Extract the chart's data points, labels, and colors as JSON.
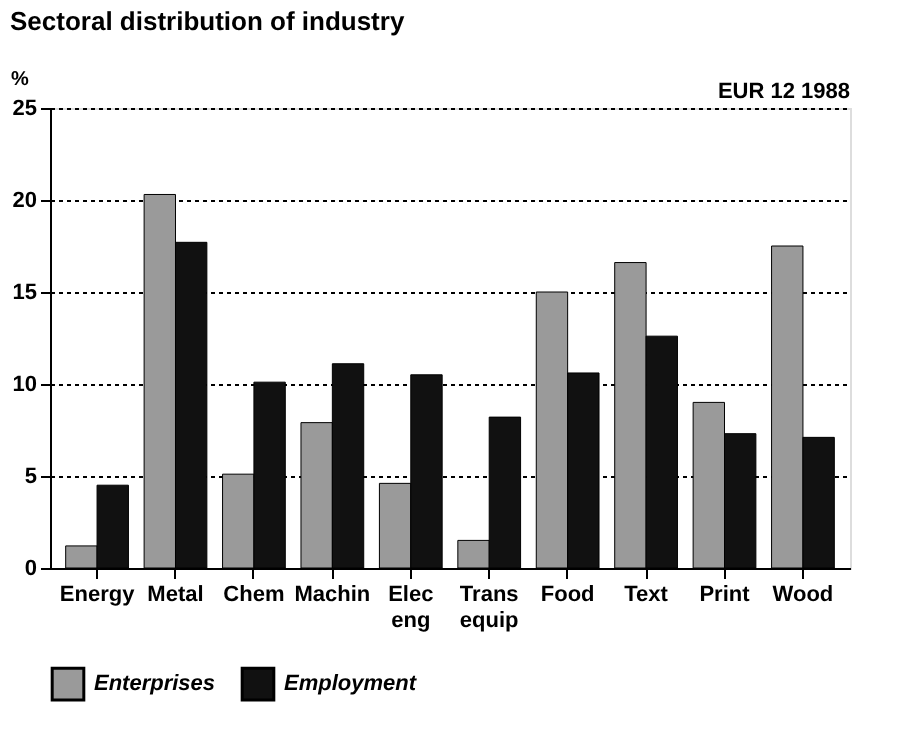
{
  "chart_data": {
    "type": "bar",
    "title": "Sectoral distribution of industry",
    "ylabel": "%",
    "annotations": [
      "EUR 12  1988"
    ],
    "categories": [
      "Energy",
      "Metal",
      "Chem",
      "Machin",
      "Elec eng",
      "Trans equip",
      "Food",
      "Text",
      "Print",
      "Wood"
    ],
    "series": [
      {
        "name": "Enterprises",
        "color": "#9a9a9a",
        "values": [
          1.2,
          20.3,
          5.1,
          7.9,
          4.6,
          1.5,
          15.0,
          16.6,
          9.0,
          17.5
        ]
      },
      {
        "name": "Employment",
        "color": "#111111",
        "values": [
          4.5,
          17.7,
          10.1,
          11.1,
          10.5,
          8.2,
          10.6,
          12.6,
          7.3,
          7.1
        ]
      }
    ],
    "ylim": [
      0,
      25
    ],
    "yticks": [
      0,
      5,
      10,
      15,
      20,
      25
    ],
    "grid": "y",
    "legend": "bottom"
  }
}
